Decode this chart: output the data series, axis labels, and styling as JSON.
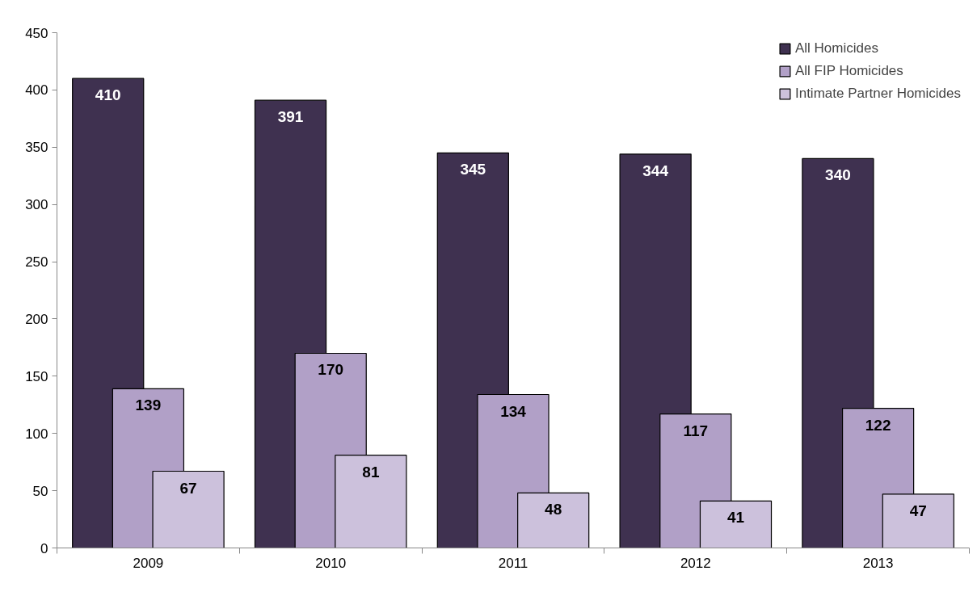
{
  "chart_data": {
    "type": "bar",
    "categories": [
      "2009",
      "2010",
      "2011",
      "2012",
      "2013"
    ],
    "series": [
      {
        "name": "All Homicides",
        "color": "#3f3150",
        "values": [
          410,
          391,
          345,
          344,
          340
        ]
      },
      {
        "name": "All FIP Homicides",
        "color": "#b1a0c7",
        "values": [
          139,
          170,
          134,
          117,
          122
        ]
      },
      {
        "name": "Intimate Partner Homicides",
        "color": "#ccc1dc",
        "values": [
          67,
          81,
          48,
          41,
          47
        ]
      }
    ],
    "ylim": [
      0,
      450
    ],
    "yticks": [
      0,
      50,
      100,
      150,
      200,
      250,
      300,
      350,
      400,
      450
    ],
    "grid": false,
    "legend": "top right",
    "data_labels": true
  }
}
